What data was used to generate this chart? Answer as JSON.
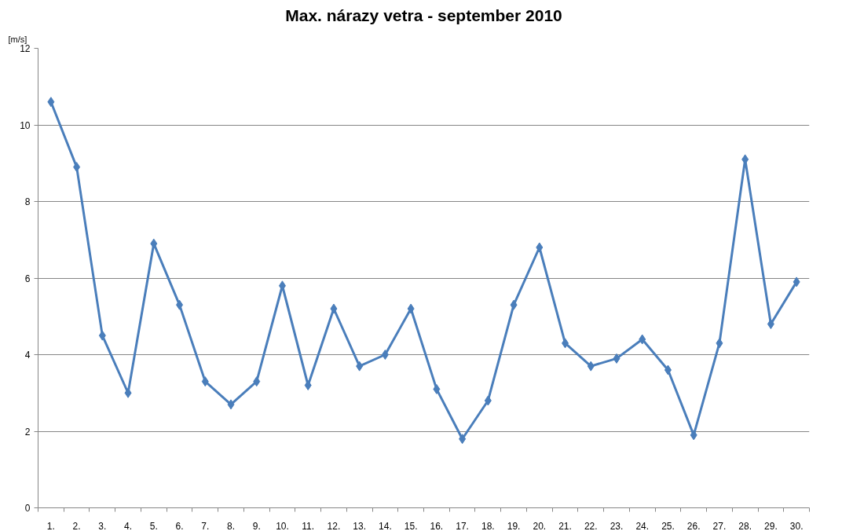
{
  "chart_data": {
    "type": "line",
    "title": "Max. nárazy vetra - september 2010",
    "ylabel": "[m/s]",
    "categories": [
      "1.",
      "2.",
      "3.",
      "4.",
      "5.",
      "6.",
      "7.",
      "8.",
      "9.",
      "10.",
      "11.",
      "12.",
      "13.",
      "14.",
      "15.",
      "16.",
      "17.",
      "18.",
      "19.",
      "20.",
      "21.",
      "22.",
      "23.",
      "24.",
      "25.",
      "26.",
      "27.",
      "28.",
      "29.",
      "30."
    ],
    "series": [
      {
        "color": "#4a7ebb",
        "values": [
          10.6,
          8.9,
          4.5,
          3.0,
          6.9,
          5.3,
          3.3,
          2.7,
          3.3,
          5.8,
          3.2,
          5.2,
          3.7,
          4.0,
          5.2,
          3.1,
          1.8,
          2.8,
          5.3,
          6.8,
          4.3,
          3.7,
          3.9,
          4.4,
          3.6,
          1.9,
          4.3,
          9.1,
          4.8,
          5.9
        ]
      }
    ],
    "ylim": [
      0,
      12
    ],
    "yticks": [
      0,
      2,
      4,
      6,
      8,
      10,
      12
    ],
    "grid": "y",
    "marker": "diamond",
    "line_style": "solid"
  }
}
